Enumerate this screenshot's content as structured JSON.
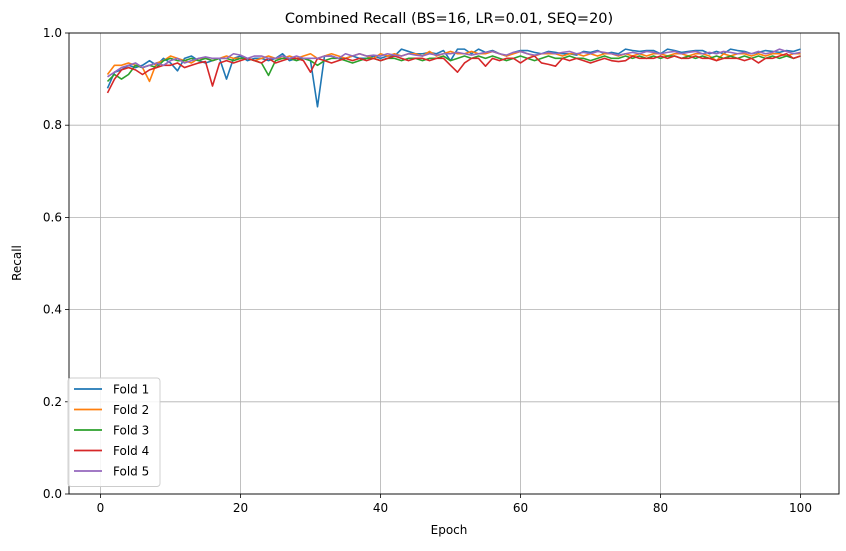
{
  "chart_data": {
    "type": "line",
    "title": "Combined Recall (BS=16, LR=0.01, SEQ=20)",
    "xlabel": "Epoch",
    "ylabel": "Recall",
    "xlim": [
      -4.5,
      105.5
    ],
    "ylim": [
      0.0,
      1.0
    ],
    "xticks": [
      0,
      20,
      40,
      60,
      80,
      100
    ],
    "yticks": [
      0.0,
      0.2,
      0.4,
      0.6,
      0.8,
      1.0
    ],
    "xtick_labels": [
      "0",
      "20",
      "40",
      "60",
      "80",
      "100"
    ],
    "ytick_labels": [
      "0.0",
      "0.2",
      "0.4",
      "0.6",
      "0.8",
      "1.0"
    ],
    "grid": true,
    "legend_position": "lower-left",
    "x_start": 1,
    "series": [
      {
        "name": "Fold 1",
        "color": "#1f77b4",
        "values": [
          0.88,
          0.915,
          0.92,
          0.93,
          0.925,
          0.93,
          0.94,
          0.93,
          0.945,
          0.935,
          0.918,
          0.945,
          0.95,
          0.94,
          0.935,
          0.94,
          0.945,
          0.9,
          0.945,
          0.95,
          0.94,
          0.945,
          0.945,
          0.94,
          0.945,
          0.955,
          0.94,
          0.945,
          0.945,
          0.94,
          0.84,
          0.95,
          0.95,
          0.945,
          0.945,
          0.95,
          0.945,
          0.945,
          0.95,
          0.945,
          0.95,
          0.95,
          0.965,
          0.96,
          0.955,
          0.955,
          0.958,
          0.955,
          0.962,
          0.94,
          0.965,
          0.965,
          0.955,
          0.965,
          0.958,
          0.962,
          0.955,
          0.95,
          0.958,
          0.962,
          0.962,
          0.958,
          0.955,
          0.96,
          0.958,
          0.955,
          0.955,
          0.952,
          0.96,
          0.958,
          0.962,
          0.955,
          0.958,
          0.955,
          0.965,
          0.962,
          0.96,
          0.962,
          0.962,
          0.955,
          0.965,
          0.962,
          0.958,
          0.96,
          0.962,
          0.962,
          0.955,
          0.96,
          0.955,
          0.965,
          0.962,
          0.96,
          0.955,
          0.958,
          0.962,
          0.96,
          0.958,
          0.962,
          0.96,
          0.965
        ]
      },
      {
        "name": "Fold 2",
        "color": "#ff7f0e",
        "values": [
          0.91,
          0.93,
          0.93,
          0.935,
          0.93,
          0.925,
          0.895,
          0.935,
          0.94,
          0.95,
          0.945,
          0.94,
          0.935,
          0.945,
          0.945,
          0.94,
          0.945,
          0.95,
          0.945,
          0.945,
          0.945,
          0.94,
          0.945,
          0.95,
          0.945,
          0.945,
          0.95,
          0.945,
          0.95,
          0.955,
          0.945,
          0.95,
          0.955,
          0.95,
          0.945,
          0.95,
          0.955,
          0.95,
          0.945,
          0.955,
          0.95,
          0.955,
          0.95,
          0.955,
          0.955,
          0.95,
          0.96,
          0.95,
          0.955,
          0.96,
          0.955,
          0.955,
          0.96,
          0.955,
          0.955,
          0.96,
          0.955,
          0.95,
          0.955,
          0.96,
          0.955,
          0.95,
          0.955,
          0.955,
          0.955,
          0.95,
          0.955,
          0.955,
          0.95,
          0.955,
          0.95,
          0.955,
          0.955,
          0.95,
          0.955,
          0.95,
          0.955,
          0.95,
          0.955,
          0.955,
          0.95,
          0.955,
          0.955,
          0.95,
          0.955,
          0.955,
          0.95,
          0.94,
          0.955,
          0.95,
          0.955,
          0.955,
          0.95,
          0.955,
          0.95,
          0.955,
          0.955,
          0.95,
          0.955,
          0.955
        ]
      },
      {
        "name": "Fold 3",
        "color": "#2ca02c",
        "values": [
          0.895,
          0.91,
          0.9,
          0.91,
          0.93,
          0.925,
          0.93,
          0.925,
          0.94,
          0.945,
          0.94,
          0.94,
          0.945,
          0.94,
          0.945,
          0.94,
          0.945,
          0.945,
          0.94,
          0.945,
          0.945,
          0.94,
          0.935,
          0.908,
          0.94,
          0.945,
          0.945,
          0.94,
          0.945,
          0.94,
          0.93,
          0.94,
          0.945,
          0.945,
          0.94,
          0.935,
          0.94,
          0.945,
          0.945,
          0.94,
          0.945,
          0.945,
          0.94,
          0.945,
          0.945,
          0.94,
          0.945,
          0.945,
          0.95,
          0.94,
          0.945,
          0.95,
          0.945,
          0.95,
          0.945,
          0.95,
          0.945,
          0.94,
          0.945,
          0.95,
          0.945,
          0.94,
          0.945,
          0.95,
          0.945,
          0.945,
          0.95,
          0.945,
          0.945,
          0.94,
          0.945,
          0.95,
          0.945,
          0.945,
          0.95,
          0.945,
          0.95,
          0.945,
          0.95,
          0.945,
          0.95,
          0.95,
          0.945,
          0.95,
          0.945,
          0.95,
          0.945,
          0.95,
          0.945,
          0.95,
          0.945,
          0.95,
          0.945,
          0.95,
          0.945,
          0.95,
          0.945,
          0.95,
          0.945,
          0.95
        ]
      },
      {
        "name": "Fold 4",
        "color": "#d62728",
        "values": [
          0.87,
          0.9,
          0.92,
          0.925,
          0.92,
          0.91,
          0.92,
          0.925,
          0.93,
          0.93,
          0.935,
          0.925,
          0.93,
          0.935,
          0.938,
          0.885,
          0.935,
          0.94,
          0.935,
          0.94,
          0.945,
          0.94,
          0.935,
          0.945,
          0.935,
          0.94,
          0.945,
          0.945,
          0.94,
          0.915,
          0.945,
          0.94,
          0.935,
          0.94,
          0.945,
          0.94,
          0.945,
          0.94,
          0.945,
          0.94,
          0.945,
          0.95,
          0.945,
          0.94,
          0.945,
          0.945,
          0.94,
          0.945,
          0.945,
          0.93,
          0.915,
          0.935,
          0.945,
          0.945,
          0.928,
          0.945,
          0.94,
          0.945,
          0.945,
          0.935,
          0.945,
          0.95,
          0.935,
          0.932,
          0.928,
          0.945,
          0.94,
          0.945,
          0.94,
          0.935,
          0.94,
          0.945,
          0.94,
          0.938,
          0.94,
          0.95,
          0.945,
          0.945,
          0.945,
          0.95,
          0.945,
          0.95,
          0.945,
          0.945,
          0.95,
          0.945,
          0.945,
          0.94,
          0.945,
          0.945,
          0.945,
          0.94,
          0.945,
          0.935,
          0.945,
          0.945,
          0.95,
          0.955,
          0.945,
          0.95
        ]
      },
      {
        "name": "Fold 5",
        "color": "#9467bd",
        "values": [
          0.905,
          0.915,
          0.925,
          0.93,
          0.935,
          0.925,
          0.93,
          0.935,
          0.93,
          0.94,
          0.945,
          0.935,
          0.94,
          0.945,
          0.948,
          0.945,
          0.945,
          0.945,
          0.955,
          0.952,
          0.945,
          0.95,
          0.95,
          0.945,
          0.945,
          0.95,
          0.945,
          0.95,
          0.945,
          0.945,
          0.945,
          0.95,
          0.95,
          0.945,
          0.955,
          0.95,
          0.955,
          0.95,
          0.952,
          0.95,
          0.955,
          0.952,
          0.95,
          0.955,
          0.952,
          0.95,
          0.955,
          0.952,
          0.955,
          0.955,
          0.958,
          0.955,
          0.952,
          0.955,
          0.958,
          0.96,
          0.955,
          0.952,
          0.958,
          0.96,
          0.955,
          0.952,
          0.955,
          0.958,
          0.955,
          0.958,
          0.96,
          0.955,
          0.958,
          0.955,
          0.96,
          0.958,
          0.955,
          0.952,
          0.955,
          0.958,
          0.955,
          0.96,
          0.958,
          0.955,
          0.958,
          0.96,
          0.955,
          0.958,
          0.96,
          0.955,
          0.958,
          0.955,
          0.96,
          0.958,
          0.955,
          0.958,
          0.955,
          0.96,
          0.955,
          0.958,
          0.965,
          0.96,
          0.955,
          0.958
        ]
      }
    ]
  }
}
